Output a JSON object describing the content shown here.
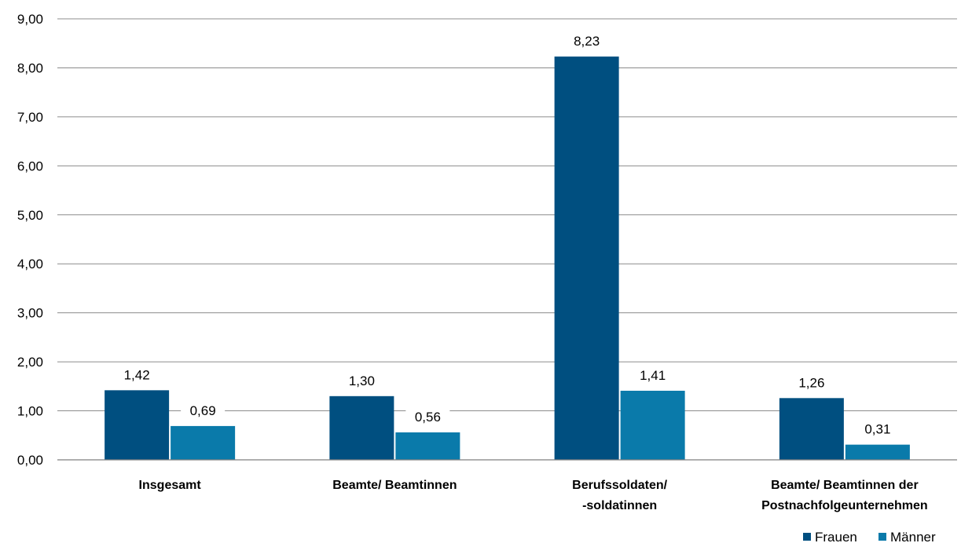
{
  "chart_data": {
    "type": "bar",
    "categories": [
      [
        "Insgesamt"
      ],
      [
        "Beamte/ Beamtinnen"
      ],
      [
        "Berufssoldaten/",
        "-soldatinnen"
      ],
      [
        "Beamte/ Beamtinnen der",
        "Postnachfolgeunternehmen"
      ]
    ],
    "series": [
      {
        "name": "Frauen",
        "values": [
          1.42,
          1.3,
          8.23,
          1.26
        ],
        "labels": [
          "1,42",
          "1,30",
          "8,23",
          "1,26"
        ],
        "color": "#004f80"
      },
      {
        "name": "Männer",
        "values": [
          0.69,
          0.56,
          1.41,
          0.31
        ],
        "labels": [
          "0,69",
          "0,56",
          "1,41",
          "0,31"
        ],
        "color": "#0a7aaa"
      }
    ],
    "ylim": [
      0,
      9
    ],
    "yticks": [
      0,
      1,
      2,
      3,
      4,
      5,
      6,
      7,
      8,
      9
    ],
    "ytick_labels": [
      "0,00",
      "1,00",
      "2,00",
      "3,00",
      "4,00",
      "5,00",
      "6,00",
      "7,00",
      "8,00",
      "9,00"
    ],
    "title": "",
    "xlabel": "",
    "ylabel": "",
    "grid": true,
    "legend": "bottom-right"
  }
}
